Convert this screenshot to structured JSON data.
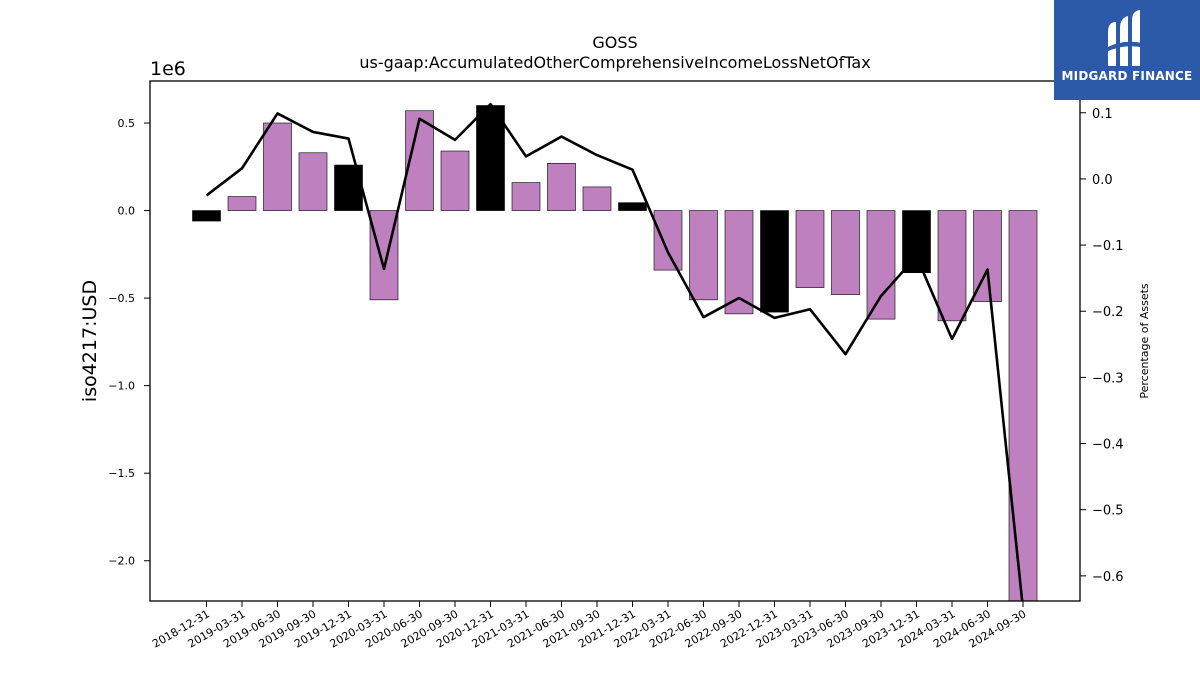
{
  "chart_data": {
    "type": "bar",
    "title": "GOSS",
    "subtitle": "us-gaap:AccumulatedOtherComprehensiveIncomeLossNetOfTax",
    "ylabel": "iso4217:USD",
    "y_offset_label": "1e6",
    "y2label": "Percentage of Assets",
    "ylim": [
      -2.23,
      0.74
    ],
    "y2lim": [
      -0.638,
      0.148
    ],
    "yticks": [
      0.5,
      0.0,
      -0.5,
      -1.0,
      -1.5,
      -2.0
    ],
    "ytick_labels": [
      "0.5",
      "0.0",
      "−0.5",
      "−1.0",
      "−1.5",
      "−2.0"
    ],
    "y2ticks": [
      0.1,
      0.0,
      -0.1,
      -0.2,
      -0.3,
      -0.4,
      -0.5,
      -0.6
    ],
    "y2tick_labels": [
      "0.1",
      "0.0",
      "−0.1",
      "−0.2",
      "−0.3",
      "−0.4",
      "−0.5",
      "−0.6"
    ],
    "categories": [
      "2018-12-31",
      "2019-03-31",
      "2019-06-30",
      "2019-09-30",
      "2019-12-31",
      "2020-03-31",
      "2020-06-30",
      "2020-09-30",
      "2020-12-31",
      "2021-03-31",
      "2021-06-30",
      "2021-09-30",
      "2021-12-31",
      "2022-03-31",
      "2022-06-30",
      "2022-09-30",
      "2022-12-31",
      "2023-03-31",
      "2023-06-30",
      "2023-09-30",
      "2023-12-31",
      "2024-03-31",
      "2024-06-30",
      "2024-09-30"
    ],
    "bar_values": [
      -0.06,
      0.08,
      0.5,
      0.33,
      0.26,
      -0.51,
      0.57,
      0.34,
      0.6,
      0.16,
      0.27,
      0.135,
      0.045,
      -0.34,
      -0.51,
      -0.59,
      -0.58,
      -0.44,
      -0.48,
      -0.62,
      -0.355,
      -0.63,
      -0.52,
      -2.23
    ],
    "bar_highlight": [
      true,
      false,
      false,
      false,
      true,
      false,
      false,
      false,
      true,
      false,
      false,
      false,
      true,
      false,
      false,
      false,
      true,
      false,
      false,
      false,
      true,
      false,
      false,
      false
    ],
    "line_values": [
      -0.025,
      0.016,
      0.099,
      0.071,
      0.061,
      -0.136,
      0.091,
      0.059,
      0.113,
      0.034,
      0.064,
      0.036,
      0.014,
      -0.111,
      -0.209,
      -0.18,
      -0.21,
      -0.197,
      -0.265,
      -0.177,
      -0.117,
      -0.242,
      -0.137,
      -0.65
    ],
    "colors": {
      "bar": "#bf80bf",
      "bar_highlight": "#000000",
      "line": "#000000"
    }
  },
  "logo": {
    "text": "MIDGARD FINANCE",
    "bg_color": "#2c5aa8"
  }
}
